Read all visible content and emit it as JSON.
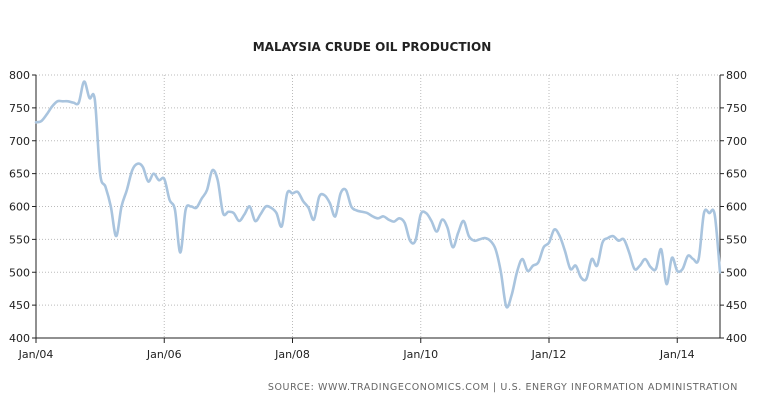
{
  "chart_data": {
    "type": "line",
    "title": "MALAYSIA CRUDE OIL PRODUCTION",
    "source": "SOURCE:  WWW.TRADINGECONOMICS.COM  |  U.S. ENERGY INFORMATION ADMINISTRATION",
    "xlabel": "",
    "ylabel": "",
    "ylim": [
      400,
      800
    ],
    "yticks": [
      400,
      450,
      500,
      550,
      600,
      650,
      700,
      750,
      800
    ],
    "xlim": [
      "2004-01",
      "2014-09"
    ],
    "xticks": [
      {
        "label": "Jan/04",
        "date": "2004-01"
      },
      {
        "label": "Jan/06",
        "date": "2006-01"
      },
      {
        "label": "Jan/08",
        "date": "2008-01"
      },
      {
        "label": "Jan/10",
        "date": "2010-01"
      },
      {
        "label": "Jan/12",
        "date": "2012-01"
      },
      {
        "label": "Jan/14",
        "date": "2014-01"
      }
    ],
    "grid": true,
    "colors": {
      "line": "#a9c4de",
      "axis": "#222222",
      "grid": "#bbbbbb"
    },
    "series": [
      {
        "x": [
          "2004-01",
          "2004-02",
          "2004-03",
          "2004-04",
          "2004-05",
          "2004-06",
          "2004-07",
          "2004-08",
          "2004-09",
          "2004-10",
          "2004-11",
          "2004-12",
          "2005-01",
          "2005-02",
          "2005-03",
          "2005-04",
          "2005-05",
          "2005-06",
          "2005-07",
          "2005-08",
          "2005-09",
          "2005-10",
          "2005-11",
          "2005-12",
          "2006-01",
          "2006-02",
          "2006-03",
          "2006-04",
          "2006-05",
          "2006-06",
          "2006-07",
          "2006-08",
          "2006-09",
          "2006-10",
          "2006-11",
          "2006-12",
          "2007-01",
          "2007-02",
          "2007-03",
          "2007-04",
          "2007-05",
          "2007-06",
          "2007-07",
          "2007-08",
          "2007-09",
          "2007-10",
          "2007-11",
          "2007-12",
          "2008-01",
          "2008-02",
          "2008-03",
          "2008-04",
          "2008-05",
          "2008-06",
          "2008-07",
          "2008-08",
          "2008-09",
          "2008-10",
          "2008-11",
          "2008-12",
          "2009-01",
          "2009-02",
          "2009-03",
          "2009-04",
          "2009-05",
          "2009-06",
          "2009-07",
          "2009-08",
          "2009-09",
          "2009-10",
          "2009-11",
          "2009-12",
          "2010-01",
          "2010-02",
          "2010-03",
          "2010-04",
          "2010-05",
          "2010-06",
          "2010-07",
          "2010-08",
          "2010-09",
          "2010-10",
          "2010-11",
          "2010-12",
          "2011-01",
          "2011-02",
          "2011-03",
          "2011-04",
          "2011-05",
          "2011-06",
          "2011-07",
          "2011-08",
          "2011-09",
          "2011-10",
          "2011-11",
          "2011-12",
          "2012-01",
          "2012-02",
          "2012-03",
          "2012-04",
          "2012-05",
          "2012-06",
          "2012-07",
          "2012-08",
          "2012-09",
          "2012-10",
          "2012-11",
          "2012-12",
          "2013-01",
          "2013-02",
          "2013-03",
          "2013-04",
          "2013-05",
          "2013-06",
          "2013-07",
          "2013-08",
          "2013-09",
          "2013-10",
          "2013-11",
          "2013-12",
          "2014-01",
          "2014-02",
          "2014-03",
          "2014-04",
          "2014-05",
          "2014-06",
          "2014-07",
          "2014-08",
          "2014-09"
        ],
        "values": [
          728,
          730,
          740,
          752,
          760,
          760,
          760,
          758,
          758,
          790,
          765,
          763,
          650,
          630,
          600,
          555,
          600,
          625,
          655,
          665,
          660,
          638,
          650,
          640,
          642,
          610,
          595,
          530,
          595,
          600,
          598,
          612,
          625,
          655,
          640,
          590,
          592,
          590,
          578,
          588,
          600,
          578,
          588,
          600,
          598,
          590,
          570,
          620,
          620,
          622,
          608,
          598,
          580,
          615,
          617,
          605,
          585,
          620,
          625,
          600,
          594,
          592,
          590,
          585,
          582,
          585,
          580,
          577,
          582,
          575,
          548,
          548,
          588,
          590,
          578,
          562,
          580,
          568,
          538,
          560,
          578,
          555,
          548,
          550,
          552,
          548,
          535,
          500,
          448,
          465,
          500,
          520,
          502,
          510,
          515,
          538,
          545,
          565,
          555,
          532,
          505,
          510,
          492,
          490,
          520,
          510,
          545,
          552,
          555,
          548,
          550,
          530,
          505,
          510,
          520,
          508,
          505,
          535,
          482,
          522,
          502,
          505,
          525,
          520,
          520,
          590,
          590,
          588,
          500
        ]
      }
    ]
  }
}
